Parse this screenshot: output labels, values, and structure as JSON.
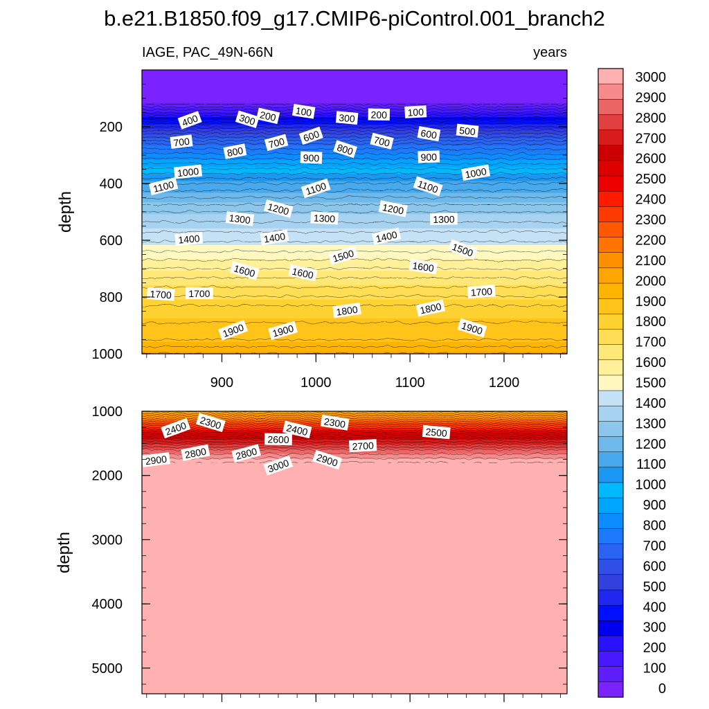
{
  "chart_data": {
    "type": "heatmap",
    "title": "b.e21.B1850.f09_g17.CMIP6-piControl.001_branch2",
    "subtitle_left": "IAGE, PAC_49N-66N",
    "subtitle_right": "years",
    "ylabel": "depth",
    "xlim": [
      815,
      1267
    ],
    "x_ticks": [
      900,
      1000,
      1100,
      1200
    ],
    "panels": [
      {
        "name": "upper",
        "ylim": [
          0,
          1000
        ],
        "y_reversed": true,
        "y_ticks": [
          200,
          400,
          600,
          800,
          1000
        ],
        "depth_profile": [
          [
            0,
            0
          ],
          [
            100,
            0
          ],
          [
            120,
            50
          ],
          [
            150,
            200
          ],
          [
            190,
            400
          ],
          [
            260,
            700
          ],
          [
            400,
            1100
          ],
          [
            500,
            1300
          ],
          [
            640,
            1500
          ],
          [
            700,
            1600
          ],
          [
            830,
            1800
          ],
          [
            950,
            1900
          ],
          [
            1000,
            2000
          ]
        ],
        "contour_labels": [
          {
            "x": 866,
            "depth": 178,
            "text": "400"
          },
          {
            "x": 927,
            "depth": 175,
            "text": "300"
          },
          {
            "x": 949,
            "depth": 163,
            "text": "200"
          },
          {
            "x": 987,
            "depth": 147,
            "text": "100"
          },
          {
            "x": 1033,
            "depth": 170,
            "text": "300"
          },
          {
            "x": 1067,
            "depth": 158,
            "text": "200"
          },
          {
            "x": 1106,
            "depth": 149,
            "text": "100"
          },
          {
            "x": 857,
            "depth": 254,
            "text": "700"
          },
          {
            "x": 914,
            "depth": 288,
            "text": "800"
          },
          {
            "x": 958,
            "depth": 257,
            "text": "700"
          },
          {
            "x": 995,
            "depth": 233,
            "text": "600"
          },
          {
            "x": 1031,
            "depth": 280,
            "text": "800"
          },
          {
            "x": 1070,
            "depth": 252,
            "text": "700"
          },
          {
            "x": 1120,
            "depth": 226,
            "text": "600"
          },
          {
            "x": 1161,
            "depth": 215,
            "text": "500"
          },
          {
            "x": 995,
            "depth": 310,
            "text": "900"
          },
          {
            "x": 1120,
            "depth": 307,
            "text": "900"
          },
          {
            "x": 864,
            "depth": 360,
            "text": "1000"
          },
          {
            "x": 1170,
            "depth": 363,
            "text": "1000"
          },
          {
            "x": 838,
            "depth": 411,
            "text": "1100"
          },
          {
            "x": 1000,
            "depth": 418,
            "text": "1100"
          },
          {
            "x": 1119,
            "depth": 411,
            "text": "1100"
          },
          {
            "x": 960,
            "depth": 490,
            "text": "1200"
          },
          {
            "x": 1082,
            "depth": 490,
            "text": "1200"
          },
          {
            "x": 919,
            "depth": 525,
            "text": "1300"
          },
          {
            "x": 1009,
            "depth": 523,
            "text": "1300"
          },
          {
            "x": 1136,
            "depth": 526,
            "text": "1300"
          },
          {
            "x": 865,
            "depth": 596,
            "text": "1400"
          },
          {
            "x": 956,
            "depth": 591,
            "text": "1400"
          },
          {
            "x": 1075,
            "depth": 587,
            "text": "1400"
          },
          {
            "x": 1029,
            "depth": 655,
            "text": "1500"
          },
          {
            "x": 1156,
            "depth": 634,
            "text": "1500"
          },
          {
            "x": 924,
            "depth": 708,
            "text": "1600"
          },
          {
            "x": 986,
            "depth": 716,
            "text": "1600"
          },
          {
            "x": 1114,
            "depth": 694,
            "text": "1600"
          },
          {
            "x": 835,
            "depth": 791,
            "text": "1700"
          },
          {
            "x": 876,
            "depth": 788,
            "text": "1700"
          },
          {
            "x": 1176,
            "depth": 782,
            "text": "1700"
          },
          {
            "x": 1033,
            "depth": 848,
            "text": "1800"
          },
          {
            "x": 1122,
            "depth": 840,
            "text": "1800"
          },
          {
            "x": 965,
            "depth": 919,
            "text": "1900"
          },
          {
            "x": 912,
            "depth": 918,
            "text": "1900"
          },
          {
            "x": 1166,
            "depth": 910,
            "text": "1900"
          }
        ]
      },
      {
        "name": "lower",
        "ylim": [
          1000,
          5400
        ],
        "y_reversed": true,
        "y_ticks": [
          1000,
          2000,
          3000,
          4000,
          5000
        ],
        "depth_profile": [
          [
            1000,
            2000
          ],
          [
            1200,
            2300
          ],
          [
            1400,
            2600
          ],
          [
            1600,
            2850
          ],
          [
            1800,
            3000
          ],
          [
            5400,
            3000
          ]
        ],
        "contour_labels": [
          {
            "x": 851,
            "depth": 1270,
            "text": "2400"
          },
          {
            "x": 888,
            "depth": 1180,
            "text": "2300"
          },
          {
            "x": 980,
            "depth": 1290,
            "text": "2400"
          },
          {
            "x": 1020,
            "depth": 1180,
            "text": "2300"
          },
          {
            "x": 1128,
            "depth": 1330,
            "text": "2500"
          },
          {
            "x": 960,
            "depth": 1440,
            "text": "2600"
          },
          {
            "x": 1050,
            "depth": 1540,
            "text": "2700"
          },
          {
            "x": 830,
            "depth": 1760,
            "text": "2900"
          },
          {
            "x": 872,
            "depth": 1650,
            "text": "2800"
          },
          {
            "x": 926,
            "depth": 1660,
            "text": "2800"
          },
          {
            "x": 960,
            "depth": 1850,
            "text": "3000"
          },
          {
            "x": 1012,
            "depth": 1760,
            "text": "2900"
          }
        ]
      }
    ],
    "colorbar": {
      "labels": [
        "3000",
        "2900",
        "2800",
        "2700",
        "2600",
        "2500",
        "2400",
        "2300",
        "2200",
        "2100",
        "2000",
        "1900",
        "1800",
        "1700",
        "1600",
        "1500",
        "1400",
        "1300",
        "1200",
        "1100",
        "1000",
        "900",
        "800",
        "700",
        "600",
        "500",
        "400",
        "300",
        "200",
        "100",
        "0"
      ],
      "colors": [
        "#ffb0b0",
        "#f78a8a",
        "#ea6666",
        "#e04040",
        "#d81c1c",
        "#cc0000",
        "#dc0000",
        "#ee0000",
        "#ff1a00",
        "#ff3a00",
        "#ff5800",
        "#ff7500",
        "#ff8f00",
        "#ffa500",
        "#ffb400",
        "#ffc31a",
        "#ffd233",
        "#ffde55",
        "#ffe878",
        "#fff099",
        "#fff8c0",
        "#c4e1f5",
        "#a8d3f0",
        "#8dc6eb",
        "#6fb9ea",
        "#48a9ed",
        "#1a97f0",
        "#00b8ff",
        "#00a5ff",
        "#0d8cff",
        "#1e78fa",
        "#2a64f0",
        "#3050e6",
        "#3240dd",
        "#2028f0",
        "#0010ff",
        "#0000ee",
        "#2a12ff",
        "#4818ff",
        "#5f1ffa",
        "#7a22ff"
      ]
    }
  }
}
